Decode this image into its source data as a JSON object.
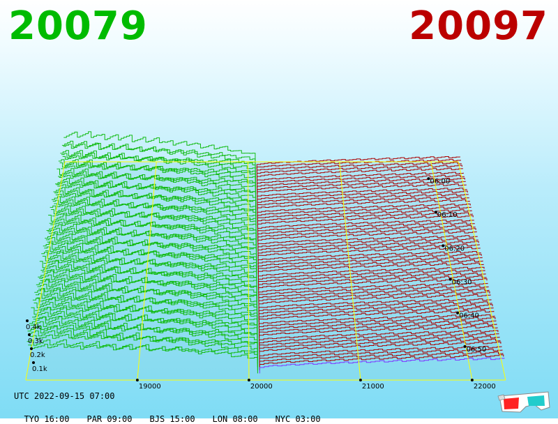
{
  "header": {
    "bid_price": "20079",
    "ask_price": "20097",
    "bid_color": "#00bb00",
    "ask_color": "#bb0000"
  },
  "footer": {
    "utc_label": "UTC 2022-09-15 07:00",
    "zones": [
      "TYO 16:00",
      "PAR 09:00",
      "BJS 15:00",
      "LON 08:00",
      "NYC 03:00"
    ]
  },
  "icons": {
    "glasses": "3d-glasses-icon"
  },
  "chart_data": {
    "type": "3d-depth-waterfall",
    "title": "",
    "x_ticks": [
      "19000",
      "20000",
      "21000",
      "22000"
    ],
    "x_tick_values": [
      19000,
      20000,
      21000,
      22000
    ],
    "xlim": [
      18000,
      22300
    ],
    "depth_ticks": [
      "0.1k",
      "0.2k",
      "0.3k",
      "0.4k"
    ],
    "depth_tick_values": [
      100,
      200,
      300,
      400
    ],
    "time_ticks": [
      "06:00",
      "06:10",
      "06:20",
      "06:30",
      "06:40",
      "06:50"
    ],
    "time_tick_minutes": [
      0,
      10,
      20,
      30,
      40,
      50
    ],
    "time_range_minutes": [
      -5,
      60
    ],
    "mid_price": 20088,
    "bid_color": "#11bb11",
    "ask_color": "#aa0000",
    "latest_color": "#7f33ff",
    "grid_color": "#ffff00",
    "series_count": 65,
    "bid_depth_far_k": [
      0.6,
      0.45,
      0.3
    ],
    "ask_depth_far_k": 0.2
  }
}
